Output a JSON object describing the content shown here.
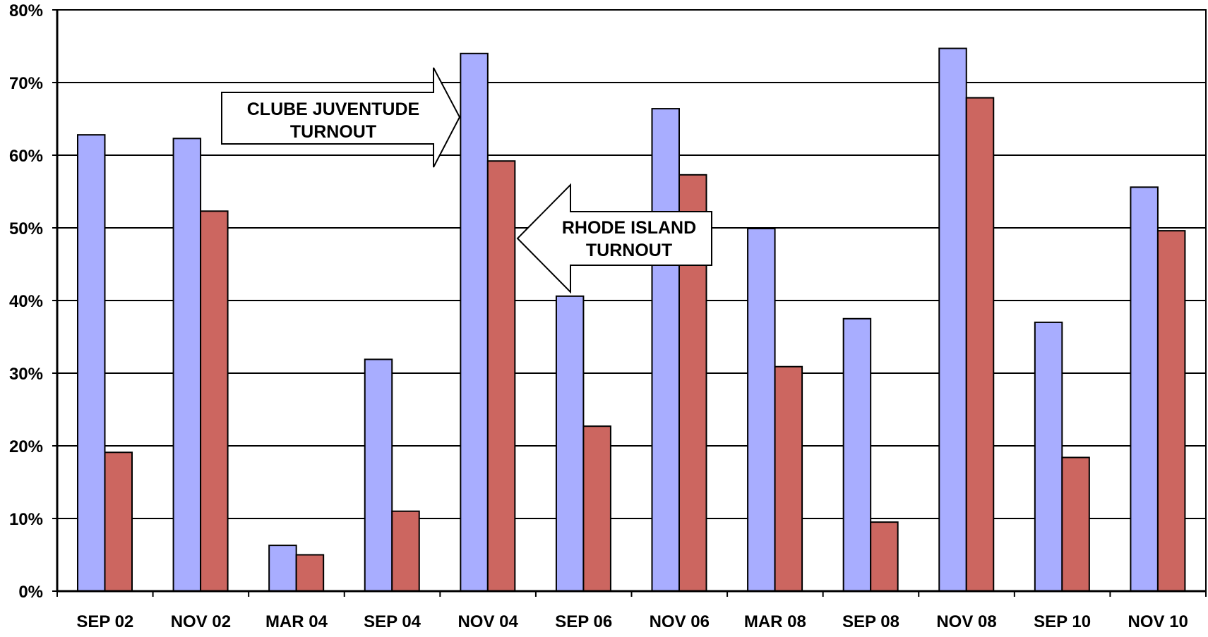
{
  "chart_data": {
    "type": "bar",
    "categories": [
      "SEP 02",
      "NOV 02",
      "MAR 04",
      "SEP 04",
      "NOV 04",
      "SEP 06",
      "NOV 06",
      "MAR 08",
      "SEP 08",
      "NOV 08",
      "SEP 10",
      "NOV 10"
    ],
    "series": [
      {
        "color": "#a8adff",
        "values": [
          62.8,
          62.3,
          6.3,
          31.9,
          74.0,
          40.6,
          66.4,
          49.9,
          37.5,
          74.7,
          37.0,
          55.6
        ]
      },
      {
        "color": "#cc6660",
        "values": [
          19.1,
          52.3,
          5.0,
          11.0,
          59.2,
          22.7,
          57.3,
          30.9,
          9.5,
          67.9,
          18.4,
          49.6
        ]
      }
    ],
    "ylim": [
      0,
      80
    ],
    "y_ticks": [
      "0%",
      "10%",
      "20%",
      "30%",
      "40%",
      "50%",
      "60%",
      "70%",
      "80%"
    ],
    "grid": true,
    "annotations": [
      {
        "line1": "CLUBE JUVENTUDE",
        "line2": "TURNOUT",
        "arrow_direction": "right",
        "points_to": "NOV 04 series 1"
      },
      {
        "line1": "RHODE ISLAND",
        "line2": "TURNOUT",
        "arrow_direction": "left",
        "points_to": "NOV 04 series 2"
      }
    ]
  }
}
